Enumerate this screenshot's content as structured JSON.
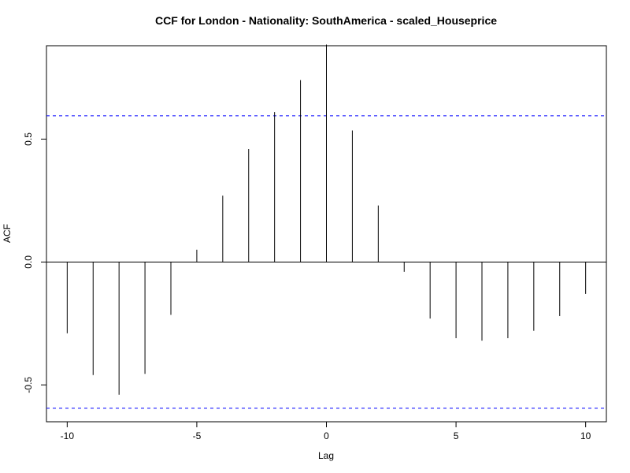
{
  "chart_data": {
    "type": "bar",
    "title": "CCF for London - Nationality: SouthAmerica - scaled_Houseprice",
    "xlabel": "Lag",
    "ylabel": "ACF",
    "xlim": [
      -10.8,
      10.8
    ],
    "ylim": [
      -0.65,
      0.88
    ],
    "x_ticks": [
      -10,
      -5,
      0,
      5,
      10
    ],
    "x_tick_labels": [
      "-10",
      "-5",
      "0",
      "5",
      "10"
    ],
    "y_ticks": [
      -0.5,
      0.0,
      0.5
    ],
    "y_tick_labels": [
      "-0.5",
      "0.0",
      "0.5"
    ],
    "confidence_bound": 0.595,
    "zero_line": true,
    "colors": {
      "bars": "#000000",
      "confidence": "#0000ff",
      "axes": "#000000"
    },
    "points": [
      {
        "lag": -10,
        "value": -0.29
      },
      {
        "lag": -9,
        "value": -0.46
      },
      {
        "lag": -8,
        "value": -0.54
      },
      {
        "lag": -7,
        "value": -0.455
      },
      {
        "lag": -6,
        "value": -0.215
      },
      {
        "lag": -5,
        "value": 0.05
      },
      {
        "lag": -4,
        "value": 0.27
      },
      {
        "lag": -3,
        "value": 0.46
      },
      {
        "lag": -2,
        "value": 0.61
      },
      {
        "lag": -1,
        "value": 0.74
      },
      {
        "lag": 0,
        "value": 0.885
      },
      {
        "lag": 1,
        "value": 0.535
      },
      {
        "lag": 2,
        "value": 0.23
      },
      {
        "lag": 3,
        "value": -0.04
      },
      {
        "lag": 4,
        "value": -0.23
      },
      {
        "lag": 5,
        "value": -0.31
      },
      {
        "lag": 6,
        "value": -0.32
      },
      {
        "lag": 7,
        "value": -0.31
      },
      {
        "lag": 8,
        "value": -0.28
      },
      {
        "lag": 9,
        "value": -0.22
      },
      {
        "lag": 10,
        "value": -0.13
      }
    ]
  }
}
